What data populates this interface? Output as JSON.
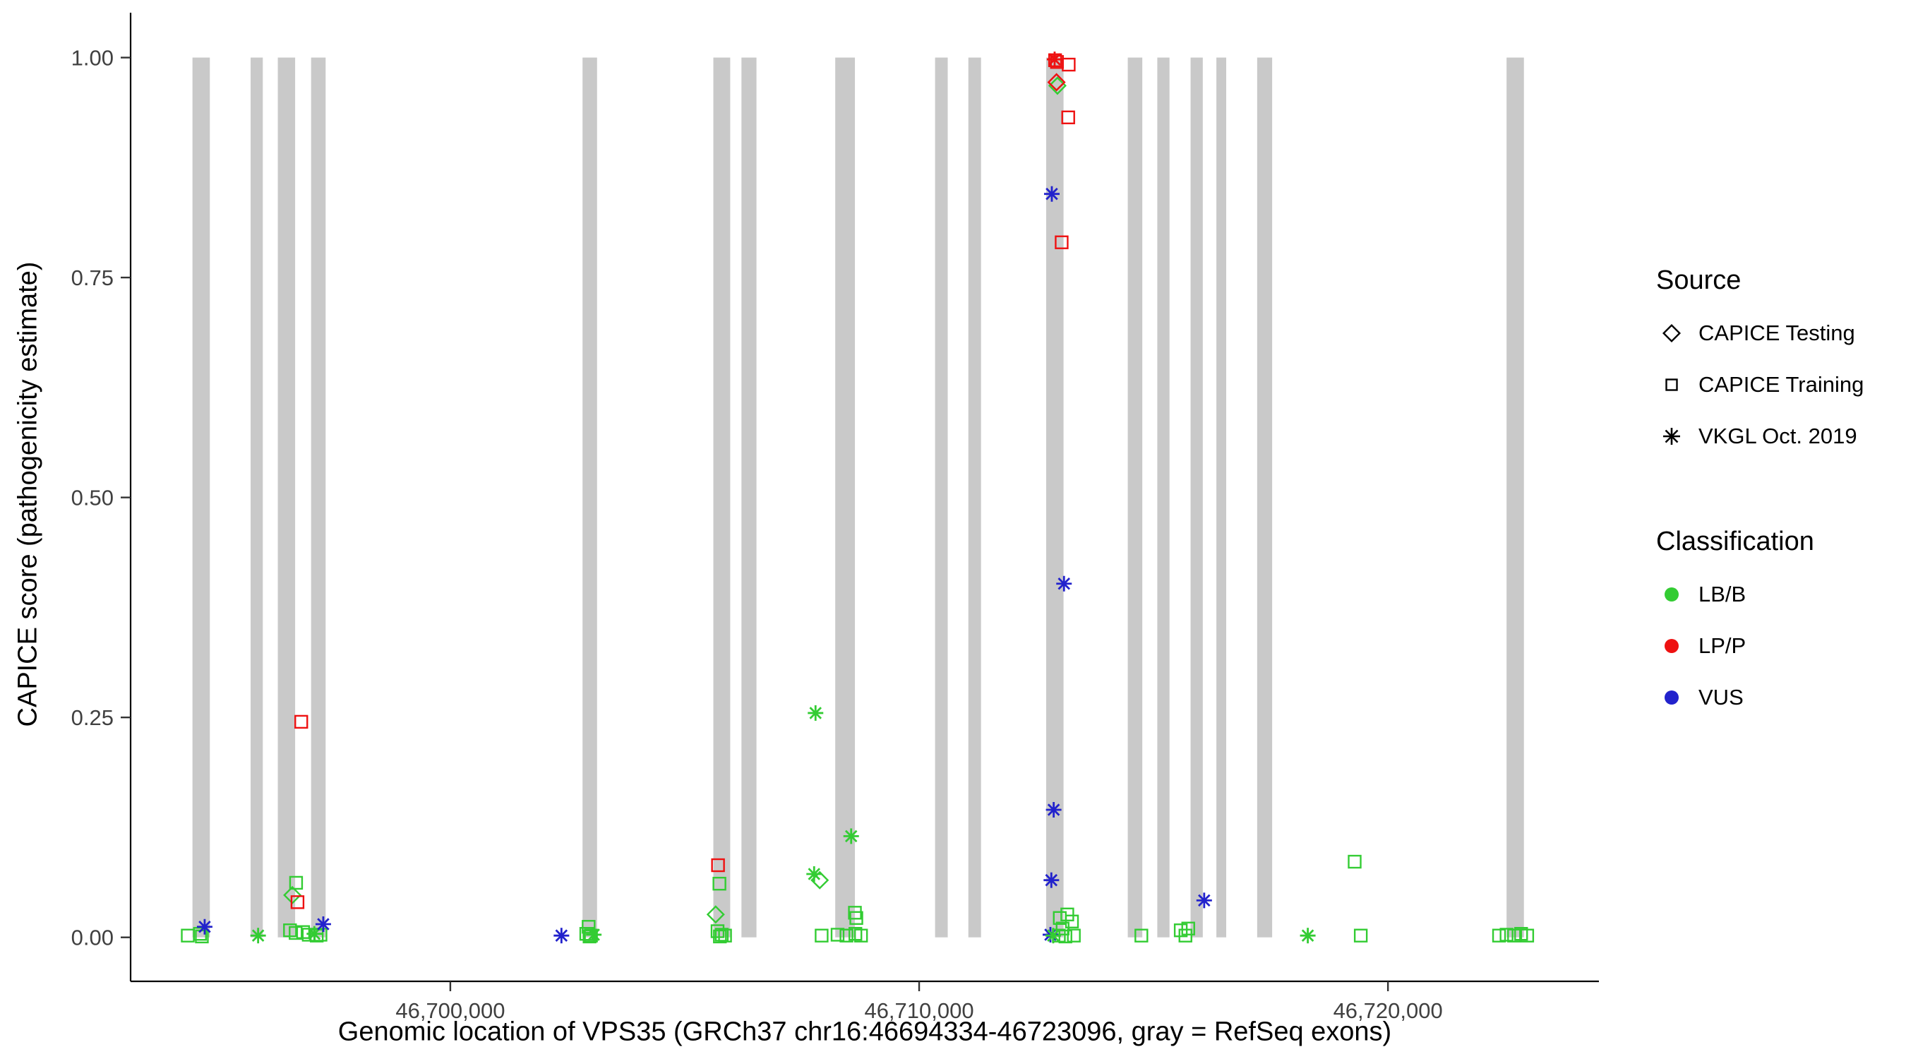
{
  "chart_data": {
    "type": "scatter",
    "title": "",
    "xlabel": "Genomic location of VPS35 (GRCh37 chr16:46694334-46723096, gray = RefSeq exons)",
    "ylabel": "CAPICE score (pathogenicity estimate)",
    "xlim": [
      46693180,
      46724500
    ],
    "ylim": [
      -0.05,
      1.051
    ],
    "grid": false,
    "legend_position": "right",
    "x_ticks": [
      {
        "value": 46700000,
        "label": "46,700,000"
      },
      {
        "value": 46710000,
        "label": "46,710,000"
      },
      {
        "value": 46720000,
        "label": "46,720,000"
      }
    ],
    "y_ticks": [
      {
        "value": 0.0,
        "label": "0.00"
      },
      {
        "value": 0.25,
        "label": "0.25"
      },
      {
        "value": 0.5,
        "label": "0.50"
      },
      {
        "value": 0.75,
        "label": "0.75"
      },
      {
        "value": 1.0,
        "label": "1.00"
      }
    ],
    "colors": {
      "LB/B": "#33CC33",
      "LP/P": "#EE1111",
      "VUS": "#2222CC",
      "exon": "#C9C9C9",
      "axis": "#000000",
      "tick_label": "#404040"
    },
    "exons": [
      [
        46694500,
        46694870
      ],
      [
        46695740,
        46696000
      ],
      [
        46696320,
        46696690
      ],
      [
        46697030,
        46697340
      ],
      [
        46702820,
        46703130
      ],
      [
        46705610,
        46705970
      ],
      [
        46706210,
        46706530
      ],
      [
        46708210,
        46708630
      ],
      [
        46710340,
        46710610
      ],
      [
        46711050,
        46711320
      ],
      [
        46712710,
        46713080
      ],
      [
        46714450,
        46714760
      ],
      [
        46715080,
        46715340
      ],
      [
        46715790,
        46716050
      ],
      [
        46716340,
        46716550
      ],
      [
        46717210,
        46717530
      ],
      [
        46722530,
        46722900
      ]
    ],
    "legend": {
      "source_title": "Source",
      "source_items": [
        {
          "label": "CAPICE Testing",
          "marker": "diamond"
        },
        {
          "label": "CAPICE Training",
          "marker": "square"
        },
        {
          "label": "VKGL Oct. 2019",
          "marker": "asterisk"
        }
      ],
      "classification_title": "Classification",
      "classification_items": [
        {
          "label": "LB/B"
        },
        {
          "label": "LP/P"
        },
        {
          "label": "VUS"
        }
      ]
    },
    "points": [
      {
        "x": 46694400,
        "y": 0.002,
        "source": "training",
        "cls": "LB/B"
      },
      {
        "x": 46694660,
        "y": 0.004,
        "source": "training",
        "cls": "LB/B"
      },
      {
        "x": 46694700,
        "y": 0.001,
        "source": "training",
        "cls": "LB/B"
      },
      {
        "x": 46694760,
        "y": 0.012,
        "source": "vkgl",
        "cls": "VUS"
      },
      {
        "x": 46695900,
        "y": 0.002,
        "source": "vkgl",
        "cls": "LB/B"
      },
      {
        "x": 46696630,
        "y": 0.048,
        "source": "testing",
        "cls": "LB/B"
      },
      {
        "x": 46696710,
        "y": 0.062,
        "source": "training",
        "cls": "LB/B"
      },
      {
        "x": 46696740,
        "y": 0.04,
        "source": "training",
        "cls": "LP/P"
      },
      {
        "x": 46696820,
        "y": 0.245,
        "source": "training",
        "cls": "LP/P"
      },
      {
        "x": 46696580,
        "y": 0.008,
        "source": "training",
        "cls": "LB/B"
      },
      {
        "x": 46696700,
        "y": 0.005,
        "source": "training",
        "cls": "LB/B"
      },
      {
        "x": 46696860,
        "y": 0.006,
        "source": "training",
        "cls": "LB/B"
      },
      {
        "x": 46696980,
        "y": 0.003,
        "source": "training",
        "cls": "LB/B"
      },
      {
        "x": 46697100,
        "y": 0.004,
        "source": "vkgl",
        "cls": "LB/B"
      },
      {
        "x": 46697150,
        "y": 0.002,
        "source": "training",
        "cls": "LB/B"
      },
      {
        "x": 46697230,
        "y": 0.003,
        "source": "training",
        "cls": "LB/B"
      },
      {
        "x": 46697290,
        "y": 0.015,
        "source": "vkgl",
        "cls": "VUS"
      },
      {
        "x": 46702370,
        "y": 0.002,
        "source": "vkgl",
        "cls": "VUS"
      },
      {
        "x": 46702950,
        "y": 0.012,
        "source": "training",
        "cls": "LB/B"
      },
      {
        "x": 46702900,
        "y": 0.004,
        "source": "training",
        "cls": "LB/B"
      },
      {
        "x": 46703000,
        "y": 0.002,
        "source": "training",
        "cls": "LB/B"
      },
      {
        "x": 46703060,
        "y": 0.003,
        "source": "vkgl",
        "cls": "LB/B"
      },
      {
        "x": 46702970,
        "y": 0.001,
        "source": "training",
        "cls": "LB/B"
      },
      {
        "x": 46705710,
        "y": 0.082,
        "source": "training",
        "cls": "LP/P"
      },
      {
        "x": 46705740,
        "y": 0.061,
        "source": "training",
        "cls": "LB/B"
      },
      {
        "x": 46705660,
        "y": 0.026,
        "source": "testing",
        "cls": "LB/B"
      },
      {
        "x": 46705700,
        "y": 0.007,
        "source": "training",
        "cls": "LB/B"
      },
      {
        "x": 46705790,
        "y": 0.003,
        "source": "training",
        "cls": "LB/B"
      },
      {
        "x": 46705860,
        "y": 0.002,
        "source": "training",
        "cls": "LB/B"
      },
      {
        "x": 46705750,
        "y": 0.001,
        "source": "training",
        "cls": "LB/B"
      },
      {
        "x": 46707790,
        "y": 0.255,
        "source": "vkgl",
        "cls": "LB/B"
      },
      {
        "x": 46707760,
        "y": 0.072,
        "source": "vkgl",
        "cls": "LB/B"
      },
      {
        "x": 46707880,
        "y": 0.065,
        "source": "testing",
        "cls": "LB/B"
      },
      {
        "x": 46708550,
        "y": 0.115,
        "source": "vkgl",
        "cls": "LB/B"
      },
      {
        "x": 46708630,
        "y": 0.028,
        "source": "training",
        "cls": "LB/B"
      },
      {
        "x": 46708660,
        "y": 0.022,
        "source": "training",
        "cls": "LB/B"
      },
      {
        "x": 46707920,
        "y": 0.002,
        "source": "training",
        "cls": "LB/B"
      },
      {
        "x": 46708260,
        "y": 0.003,
        "source": "training",
        "cls": "LB/B"
      },
      {
        "x": 46708450,
        "y": 0.002,
        "source": "training",
        "cls": "LB/B"
      },
      {
        "x": 46708640,
        "y": 0.004,
        "source": "training",
        "cls": "LB/B"
      },
      {
        "x": 46708760,
        "y": 0.002,
        "source": "training",
        "cls": "LB/B"
      },
      {
        "x": 46712890,
        "y": 0.998,
        "source": "vkgl",
        "cls": "LP/P"
      },
      {
        "x": 46712900,
        "y": 0.997,
        "source": "training",
        "cls": "LP/P"
      },
      {
        "x": 46712940,
        "y": 0.995,
        "source": "training",
        "cls": "LP/P"
      },
      {
        "x": 46713190,
        "y": 0.992,
        "source": "training",
        "cls": "LP/P"
      },
      {
        "x": 46712950,
        "y": 0.968,
        "source": "testing",
        "cls": "LB/B"
      },
      {
        "x": 46712930,
        "y": 0.972,
        "source": "testing",
        "cls": "LP/P"
      },
      {
        "x": 46713180,
        "y": 0.932,
        "source": "training",
        "cls": "LP/P"
      },
      {
        "x": 46712830,
        "y": 0.845,
        "source": "vkgl",
        "cls": "VUS"
      },
      {
        "x": 46713040,
        "y": 0.79,
        "source": "training",
        "cls": "LP/P"
      },
      {
        "x": 46713090,
        "y": 0.402,
        "source": "vkgl",
        "cls": "VUS"
      },
      {
        "x": 46712870,
        "y": 0.145,
        "source": "vkgl",
        "cls": "VUS"
      },
      {
        "x": 46712820,
        "y": 0.065,
        "source": "vkgl",
        "cls": "VUS"
      },
      {
        "x": 46713000,
        "y": 0.022,
        "source": "training",
        "cls": "LB/B"
      },
      {
        "x": 46713160,
        "y": 0.026,
        "source": "training",
        "cls": "LB/B"
      },
      {
        "x": 46713260,
        "y": 0.018,
        "source": "training",
        "cls": "LB/B"
      },
      {
        "x": 46713060,
        "y": 0.01,
        "source": "training",
        "cls": "LB/B"
      },
      {
        "x": 46712800,
        "y": 0.003,
        "source": "vkgl",
        "cls": "VUS"
      },
      {
        "x": 46712860,
        "y": 0.002,
        "source": "vkgl",
        "cls": "LB/B"
      },
      {
        "x": 46712980,
        "y": 0.002,
        "source": "training",
        "cls": "LB/B"
      },
      {
        "x": 46713120,
        "y": 0.001,
        "source": "training",
        "cls": "LB/B"
      },
      {
        "x": 46713300,
        "y": 0.002,
        "source": "training",
        "cls": "LB/B"
      },
      {
        "x": 46714740,
        "y": 0.002,
        "source": "training",
        "cls": "LB/B"
      },
      {
        "x": 46715580,
        "y": 0.008,
        "source": "training",
        "cls": "LB/B"
      },
      {
        "x": 46715740,
        "y": 0.01,
        "source": "training",
        "cls": "LB/B"
      },
      {
        "x": 46715680,
        "y": 0.002,
        "source": "training",
        "cls": "LB/B"
      },
      {
        "x": 46716080,
        "y": 0.042,
        "source": "vkgl",
        "cls": "VUS"
      },
      {
        "x": 46718290,
        "y": 0.002,
        "source": "vkgl",
        "cls": "LB/B"
      },
      {
        "x": 46719290,
        "y": 0.086,
        "source": "training",
        "cls": "LB/B"
      },
      {
        "x": 46719420,
        "y": 0.002,
        "source": "training",
        "cls": "LB/B"
      },
      {
        "x": 46722370,
        "y": 0.002,
        "source": "training",
        "cls": "LB/B"
      },
      {
        "x": 46722530,
        "y": 0.003,
        "source": "training",
        "cls": "LB/B"
      },
      {
        "x": 46722690,
        "y": 0.002,
        "source": "training",
        "cls": "LB/B"
      },
      {
        "x": 46722840,
        "y": 0.004,
        "source": "training",
        "cls": "LB/B"
      },
      {
        "x": 46722970,
        "y": 0.002,
        "source": "training",
        "cls": "LB/B"
      }
    ]
  }
}
